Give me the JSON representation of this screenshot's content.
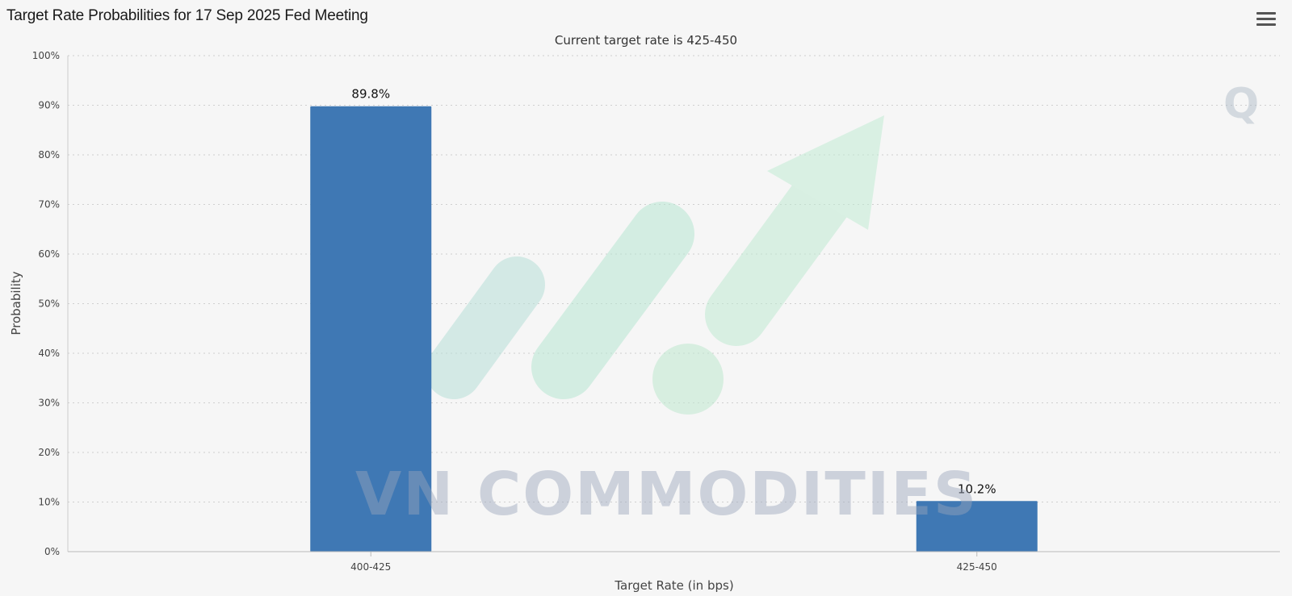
{
  "chart_data": {
    "type": "bar",
    "title": "Target Rate Probabilities for 17 Sep 2025 Fed Meeting",
    "subtitle": "Current target rate is 425-450",
    "xlabel": "Target Rate (in bps)",
    "ylabel": "Probability",
    "categories": [
      "400-425",
      "425-450"
    ],
    "values": [
      89.8,
      10.2
    ],
    "data_labels": [
      "89.8%",
      "10.2%"
    ],
    "ylim": [
      0,
      100
    ],
    "yticks": [
      "0%",
      "10%",
      "20%",
      "30%",
      "40%",
      "50%",
      "60%",
      "70%",
      "80%",
      "90%",
      "100%"
    ],
    "grid": true,
    "bar_color": "#3f78b4"
  },
  "watermark": {
    "text": "VN COMMODITIES",
    "icon": "rising-bars-arrow-logo"
  },
  "menu_icon": "hamburger-menu-icon"
}
